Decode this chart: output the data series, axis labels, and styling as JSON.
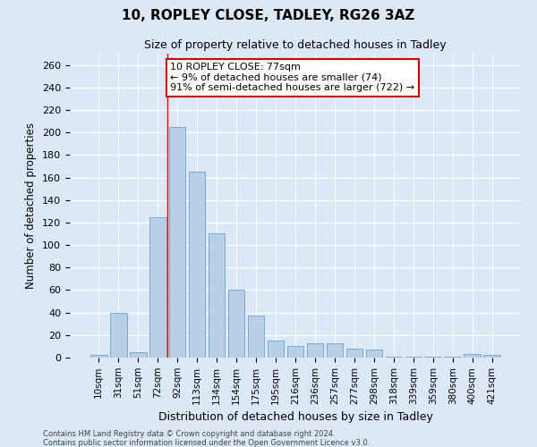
{
  "title1": "10, ROPLEY CLOSE, TADLEY, RG26 3AZ",
  "title2": "Size of property relative to detached houses in Tadley",
  "xlabel": "Distribution of detached houses by size in Tadley",
  "ylabel": "Number of detached properties",
  "categories": [
    "10sqm",
    "31sqm",
    "51sqm",
    "72sqm",
    "92sqm",
    "113sqm",
    "134sqm",
    "154sqm",
    "175sqm",
    "195sqm",
    "216sqm",
    "236sqm",
    "257sqm",
    "277sqm",
    "298sqm",
    "318sqm",
    "339sqm",
    "359sqm",
    "380sqm",
    "400sqm",
    "421sqm"
  ],
  "values": [
    2,
    40,
    5,
    125,
    205,
    165,
    110,
    60,
    37,
    15,
    10,
    13,
    13,
    8,
    7,
    1,
    1,
    1,
    1,
    3,
    2
  ],
  "bar_color": "#b8cfe8",
  "bar_edge_color": "#7aaacf",
  "bg_color": "#dce8f5",
  "grid_color": "#ffffff",
  "vline_x_idx": 3,
  "annotation_line1": "10 ROPLEY CLOSE: 77sqm",
  "annotation_line2": "← 9% of detached houses are smaller (74)",
  "annotation_line3": "91% of semi-detached houses are larger (722) →",
  "annotation_box_color": "#ffffff",
  "annotation_box_edge_color": "#cc0000",
  "footer1": "Contains HM Land Registry data © Crown copyright and database right 2024.",
  "footer2": "Contains public sector information licensed under the Open Government Licence v3.0.",
  "ylim": [
    0,
    270
  ],
  "yticks": [
    0,
    20,
    40,
    60,
    80,
    100,
    120,
    140,
    160,
    180,
    200,
    220,
    240,
    260
  ]
}
